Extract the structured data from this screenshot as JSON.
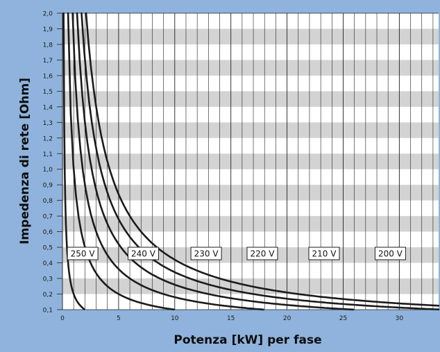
{
  "chart_data": {
    "type": "line",
    "xlabel": "Potenza [kW] per fase",
    "ylabel": "Impedenza di rete [Ohm]",
    "xlim": [
      0,
      33.5
    ],
    "ylim": [
      0.1,
      2.0
    ],
    "x_ticks": [
      "0",
      "5",
      "10",
      "15",
      "20",
      "25",
      "30"
    ],
    "x_tick_values": [
      0,
      5,
      10,
      15,
      20,
      25,
      30
    ],
    "y_ticks": [
      "0,1",
      "0,2",
      "0,3",
      "0,4",
      "0,5",
      "0,6",
      "0,7",
      "0,8",
      "0,9",
      "1,0",
      "1,1",
      "1,2",
      "1,3",
      "1,4",
      "1,5",
      "1,6",
      "1,7",
      "1,8",
      "1,9",
      "2,0"
    ],
    "y_tick_values": [
      0.1,
      0.2,
      0.3,
      0.4,
      0.5,
      0.6,
      0.7,
      0.8,
      0.9,
      1.0,
      1.1,
      1.2,
      1.3,
      1.4,
      1.5,
      1.6,
      1.7,
      1.8,
      1.9,
      2.0
    ],
    "grid": true,
    "series": [
      {
        "name": "250 V",
        "K": 0.2,
        "x_end": 7.5,
        "label_at": [
          1.8,
          0.46
        ]
      },
      {
        "name": "240 V",
        "K": 1.0,
        "x_end": 33.5,
        "label_at": [
          7.2,
          0.46
        ]
      },
      {
        "name": "230 V",
        "K": 1.8,
        "x_end": 33.5,
        "label_at": [
          12.8,
          0.46
        ]
      },
      {
        "name": "220 V",
        "K": 2.6,
        "x_end": 33.5,
        "label_at": [
          17.8,
          0.46
        ]
      },
      {
        "name": "210 V",
        "K": 3.4,
        "x_end": 33.5,
        "label_at": [
          23.3,
          0.46
        ]
      },
      {
        "name": "200 V",
        "K": 4.2,
        "x_end": 33.5,
        "label_at": [
          29.2,
          0.46
        ]
      }
    ],
    "colors": {
      "background": "#8fb3dc",
      "stripe": "#d3d3d3",
      "plot": "#ffffff",
      "curve": "#1b1b1b"
    }
  }
}
